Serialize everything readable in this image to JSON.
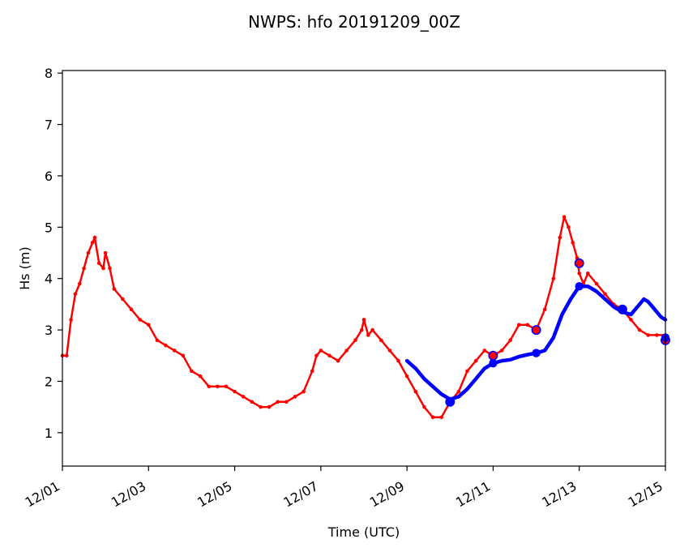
{
  "chart_data": {
    "type": "line",
    "title": "NWPS: hfo 20191209_00Z",
    "xlabel": "Time (UTC)",
    "ylabel": "Hs (m)",
    "x_unit": "day of December 2019",
    "xlim": [
      1,
      15
    ],
    "ylim": [
      0.35,
      8.05
    ],
    "grid": false,
    "legend": "none",
    "x_ticks": [
      1,
      3,
      5,
      7,
      9,
      11,
      13,
      15
    ],
    "x_tick_labels": [
      "12/01",
      "12/03",
      "12/05",
      "12/07",
      "12/09",
      "12/11",
      "12/13",
      "12/15"
    ],
    "y_ticks": [
      1,
      2,
      3,
      4,
      5,
      6,
      7,
      8
    ],
    "y_tick_labels": [
      "1",
      "2",
      "3",
      "4",
      "5",
      "6",
      "7",
      "8"
    ],
    "series": [
      {
        "color": "#ff0000",
        "style": "line-with-small-dots",
        "x": [
          1.0,
          1.1,
          1.2,
          1.3,
          1.4,
          1.5,
          1.6,
          1.7,
          1.75,
          1.85,
          1.95,
          2.0,
          2.1,
          2.2,
          2.4,
          2.6,
          2.8,
          3.0,
          3.2,
          3.4,
          3.6,
          3.8,
          4.0,
          4.2,
          4.4,
          4.6,
          4.8,
          5.0,
          5.2,
          5.4,
          5.6,
          5.8,
          6.0,
          6.2,
          6.4,
          6.6,
          6.8,
          6.9,
          7.0,
          7.2,
          7.4,
          7.6,
          7.8,
          7.95,
          8.0,
          8.1,
          8.2,
          8.4,
          8.6,
          8.8,
          9.0,
          9.2,
          9.4,
          9.6,
          9.8,
          10.0,
          10.2,
          10.4,
          10.6,
          10.8,
          11.0,
          11.2,
          11.4,
          11.6,
          11.8,
          12.0,
          12.2,
          12.4,
          12.55,
          12.65,
          12.75,
          12.85,
          12.95,
          13.0,
          13.1,
          13.2,
          13.4,
          13.6,
          13.8,
          14.0,
          14.2,
          14.4,
          14.6,
          14.8,
          15.0
        ],
        "values": [
          2.5,
          2.5,
          3.2,
          3.7,
          3.9,
          4.2,
          4.5,
          4.7,
          4.8,
          4.3,
          4.2,
          4.5,
          4.2,
          3.8,
          3.6,
          3.4,
          3.2,
          3.1,
          2.8,
          2.7,
          2.6,
          2.5,
          2.2,
          2.1,
          1.9,
          1.9,
          1.9,
          1.8,
          1.7,
          1.6,
          1.5,
          1.5,
          1.6,
          1.6,
          1.7,
          1.8,
          2.2,
          2.5,
          2.6,
          2.5,
          2.4,
          2.6,
          2.8,
          3.0,
          3.2,
          2.9,
          3.0,
          2.8,
          2.6,
          2.4,
          2.1,
          1.8,
          1.5,
          1.3,
          1.3,
          1.6,
          1.8,
          2.2,
          2.4,
          2.6,
          2.5,
          2.6,
          2.8,
          3.1,
          3.1,
          3.0,
          3.4,
          4.0,
          4.8,
          5.2,
          5.0,
          4.7,
          4.4,
          4.1,
          3.9,
          4.1,
          3.9,
          3.7,
          3.5,
          3.4,
          3.2,
          3.0,
          2.9,
          2.9,
          2.9
        ]
      },
      {
        "color": "#0000ff",
        "style": "thick-line",
        "x": [
          9.0,
          9.2,
          9.4,
          9.6,
          9.8,
          10.0,
          10.2,
          10.4,
          10.6,
          10.8,
          11.0,
          11.2,
          11.4,
          11.6,
          11.8,
          12.0,
          12.2,
          12.4,
          12.6,
          12.8,
          13.0,
          13.2,
          13.4,
          13.6,
          13.8,
          14.0,
          14.2,
          14.4,
          14.5,
          14.6,
          14.7,
          14.8,
          14.9,
          15.0
        ],
        "values": [
          2.4,
          2.25,
          2.05,
          1.9,
          1.75,
          1.65,
          1.7,
          1.85,
          2.05,
          2.25,
          2.35,
          2.4,
          2.42,
          2.48,
          2.52,
          2.55,
          2.6,
          2.85,
          3.3,
          3.6,
          3.85,
          3.85,
          3.75,
          3.6,
          3.45,
          3.35,
          3.3,
          3.5,
          3.6,
          3.55,
          3.45,
          3.35,
          3.25,
          3.2
        ]
      }
    ],
    "markers": [
      {
        "style": "open-circle",
        "edge_color": "#0000ff",
        "fill_color": "#ff0000",
        "x": [
          10.0,
          11.0,
          12.0,
          13.0,
          14.0,
          15.0
        ],
        "values": [
          1.6,
          2.5,
          3.0,
          4.3,
          3.4,
          2.8
        ]
      },
      {
        "style": "filled-circle",
        "color": "#0000ff",
        "x": [
          10.0,
          11.0,
          12.0,
          13.0,
          14.0,
          15.0
        ],
        "values": [
          1.6,
          2.35,
          2.55,
          3.85,
          3.4,
          2.85
        ]
      }
    ]
  }
}
